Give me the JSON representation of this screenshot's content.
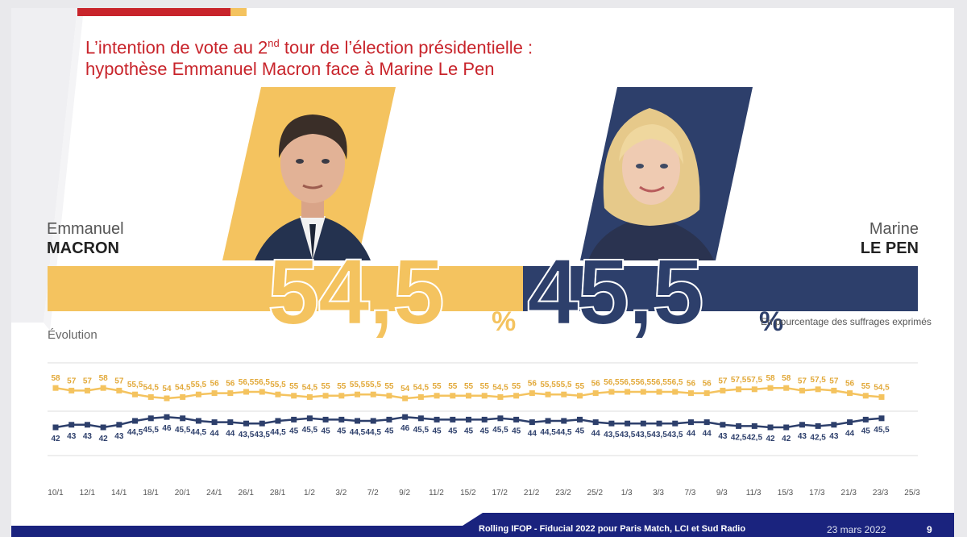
{
  "title": {
    "line1": "L’intention de vote au 2",
    "sup": "nd",
    "line1_end": " tour de l’élection présidentielle :",
    "line2": "hypothèse Emmanuel Macron face à Marine Le Pen"
  },
  "candidates": {
    "macron": {
      "first": "Emmanuel",
      "last": "MACRON",
      "score": "54,5",
      "pct": "%"
    },
    "lepen": {
      "first": "Marine",
      "last": "LE PEN",
      "score": "45,5",
      "pct": "%"
    }
  },
  "note": "En pourcentage des suffrages exprimés",
  "evolution_label": "Évolution",
  "colors": {
    "macron": "#f4c35f",
    "lepen": "#2d3f6b",
    "title": "#c8242b",
    "footer": "#1a237e"
  },
  "chart_data": {
    "type": "line",
    "x_tick_labels": [
      "10/1",
      "12/1",
      "14/1",
      "18/1",
      "20/1",
      "24/1",
      "26/1",
      "28/1",
      "1/2",
      "3/2",
      "7/2",
      "9/2",
      "11/2",
      "15/2",
      "17/2",
      "21/2",
      "23/2",
      "25/2",
      "1/3",
      "3/3",
      "7/3",
      "9/3",
      "11/3",
      "15/3",
      "17/3",
      "21/3",
      "23/3",
      "25/3"
    ],
    "series": [
      {
        "name": "Emmanuel Macron",
        "color": "#f4c35f",
        "labels": [
          "58",
          "57",
          "57",
          "58",
          "57",
          "55,5",
          "54,5",
          "54",
          "54,5",
          "55,5",
          "56",
          "56",
          "56,5",
          "56,5",
          "55,5",
          "55",
          "54,5",
          "55",
          "55",
          "55,5",
          "55,5",
          "55",
          "54",
          "54,5",
          "55",
          "55",
          "55",
          "55",
          "54,5",
          "55",
          "56",
          "55,5",
          "55,5",
          "55",
          "56",
          "56,5",
          "56,5",
          "56,5",
          "56,5",
          "56,5",
          "56",
          "56",
          "57",
          "57,5",
          "57,5",
          "58",
          "58",
          "57",
          "57,5",
          "57",
          "56",
          "55",
          "54,5"
        ],
        "values": [
          58,
          57,
          57,
          58,
          57,
          55.5,
          54.5,
          54,
          54.5,
          55.5,
          56,
          56,
          56.5,
          56.5,
          55.5,
          55,
          54.5,
          55,
          55,
          55.5,
          55.5,
          55,
          54,
          54.5,
          55,
          55,
          55,
          55,
          54.5,
          55,
          56,
          55.5,
          55.5,
          55,
          56,
          56.5,
          56.5,
          56.5,
          56.5,
          56.5,
          56,
          56,
          57,
          57.5,
          57.5,
          58,
          58,
          57,
          57.5,
          57,
          56,
          55,
          54.5
        ]
      },
      {
        "name": "Marine Le Pen",
        "color": "#2d3f6b",
        "labels": [
          "42",
          "43",
          "43",
          "42",
          "43",
          "44,5",
          "45,5",
          "46",
          "45,5",
          "44,5",
          "44",
          "44",
          "43,5",
          "43,5",
          "44,5",
          "45",
          "45,5",
          "45",
          "45",
          "44,5",
          "44,5",
          "45",
          "46",
          "45,5",
          "45",
          "45",
          "45",
          "45",
          "45,5",
          "45",
          "44",
          "44,5",
          "44,5",
          "45",
          "44",
          "43,5",
          "43,5",
          "43,5",
          "43,5",
          "43,5",
          "44",
          "44",
          "43",
          "42,5",
          "42,5",
          "42",
          "42",
          "43",
          "42,5",
          "43",
          "44",
          "45",
          "45,5"
        ],
        "values": [
          42,
          43,
          43,
          42,
          43,
          44.5,
          45.5,
          46,
          45.5,
          44.5,
          44,
          44,
          43.5,
          43.5,
          44.5,
          45,
          45.5,
          45,
          45,
          44.5,
          44.5,
          45,
          46,
          45.5,
          45,
          45,
          45,
          45,
          45.5,
          45,
          44,
          44.5,
          44.5,
          45,
          44,
          43.5,
          43.5,
          43.5,
          43.5,
          43.5,
          44,
          44,
          43,
          42.5,
          42.5,
          42,
          42,
          43,
          42.5,
          43,
          44,
          45,
          45.5
        ]
      }
    ]
  },
  "footer": {
    "source": "Rolling IFOP - Fiducial 2022 pour Paris Match, LCI et Sud Radio",
    "date": "23 mars 2022",
    "page": "9"
  }
}
